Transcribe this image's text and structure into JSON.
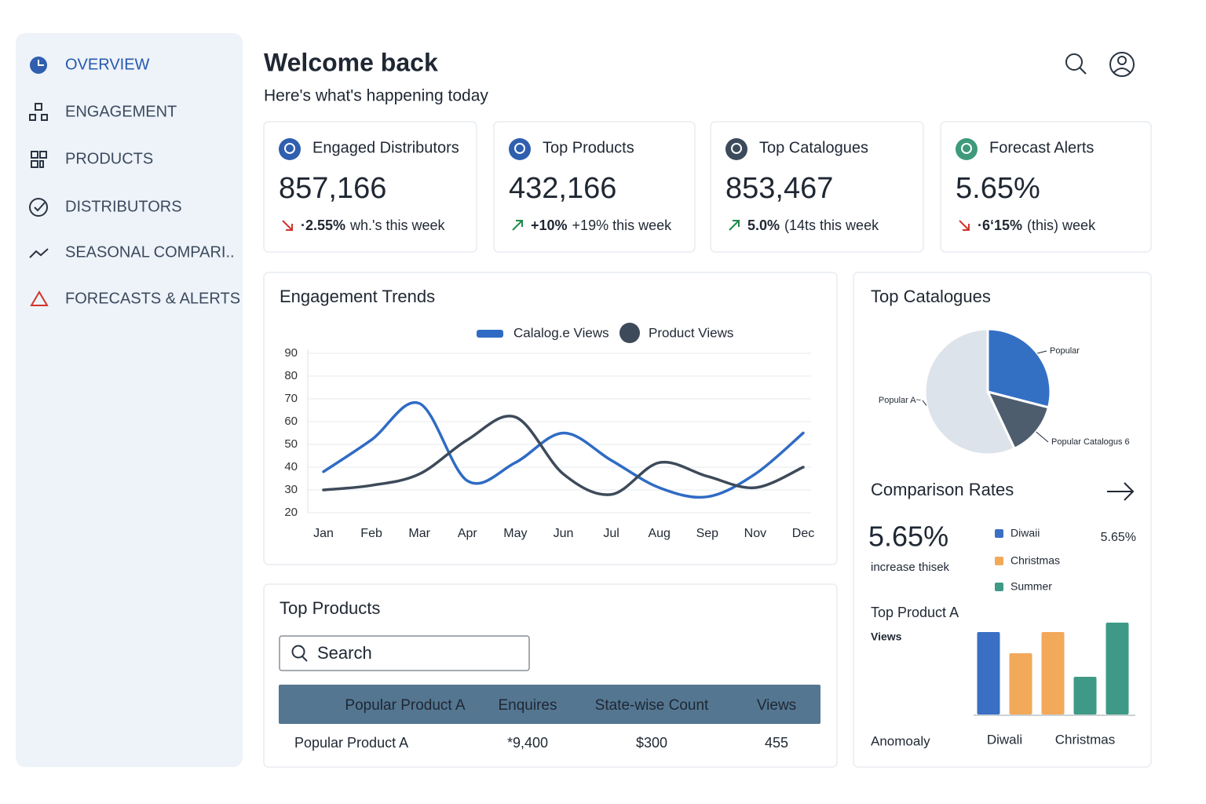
{
  "sidebar": {
    "items": [
      "OVERVIEW",
      "ENGAGEMENT",
      "PRODUCTS",
      "DISTRIBUTORS",
      "SEASONAL COMPARI..",
      "FORECASTS & ALERTS"
    ]
  },
  "header": {
    "title": "Welcome back",
    "subtitle": "Here's what's happening today"
  },
  "kpis": [
    {
      "label": "Engaged Distributors",
      "value": "857,166",
      "delta": "·2.55%",
      "note": "wh.'s this week",
      "trend": "down"
    },
    {
      "label": "Top Products",
      "value": "432,166",
      "delta": "+10%",
      "note": "+19% this week",
      "trend": "up"
    },
    {
      "label": "Top Catalogues",
      "value": "853,467",
      "delta": "5.0%",
      "note": "(14ts this week",
      "trend": "up"
    },
    {
      "label": "Forecast Alerts",
      "value": "5.65%",
      "delta": "·6‘15%",
      "note": "(this) week",
      "trend": "down"
    }
  ],
  "engagement_trends": {
    "type": "line",
    "title": "Engagement Trends",
    "categories": [
      "Jan",
      "Feb",
      "Mar",
      "Apr",
      "May",
      "Jun",
      "Jul",
      "Aug",
      "Sep",
      "Nov",
      "Dec"
    ],
    "series": [
      {
        "name": "Calalog.e Views",
        "color": "#2f6bc4",
        "values": [
          38,
          52,
          68,
          34,
          42,
          55,
          43,
          31,
          27,
          37,
          55
        ]
      },
      {
        "name": "Product Views",
        "color": "#3d4a5a",
        "values": [
          30,
          32,
          37,
          52,
          62,
          37,
          28,
          42,
          36,
          31,
          40
        ]
      }
    ],
    "ylim": [
      20,
      90
    ],
    "yticks": [
      20,
      30,
      40,
      50,
      60,
      70,
      80,
      90
    ],
    "grid": true
  },
  "top_catalogues": {
    "type": "pie",
    "title": "Top Catalogues",
    "categories": [
      "Popular",
      "Popular Catalogus 6",
      "Popular A~"
    ],
    "values": [
      29,
      14,
      57
    ],
    "colors": [
      "#3370c4",
      "#4e5d6e",
      "#dde3ea"
    ]
  },
  "comparison_rates": {
    "title": "Comparison Rates",
    "value": "5.65%",
    "caption": "increase thisek",
    "side_value": "5.65%",
    "bar_chart": {
      "type": "bar",
      "title": "Top Product A",
      "ylabel": "Views",
      "xlabel": "Anomoaly",
      "categories": [
        "Diwali",
        null,
        "Christmas",
        null,
        null
      ],
      "series": [
        {
          "name": "Diwaii",
          "color": "#3a6fc4",
          "values": [
            105,
            null,
            null,
            null,
            null
          ]
        },
        {
          "name": "Christmas",
          "color": "#f2a95a",
          "values": [
            null,
            78,
            105,
            null,
            null
          ]
        },
        {
          "name": "Summer",
          "color": "#3e9a86",
          "values": [
            null,
            null,
            null,
            48,
            117
          ]
        }
      ]
    }
  },
  "top_products": {
    "title": "Top Products",
    "search_placeholder": "Search",
    "table": {
      "headers": [
        "Popular Product A",
        "Enquires",
        "State-wise Count",
        "Views"
      ],
      "rows": [
        [
          "Popular Product A",
          "*9,400",
          "$300",
          "455"
        ]
      ]
    }
  }
}
